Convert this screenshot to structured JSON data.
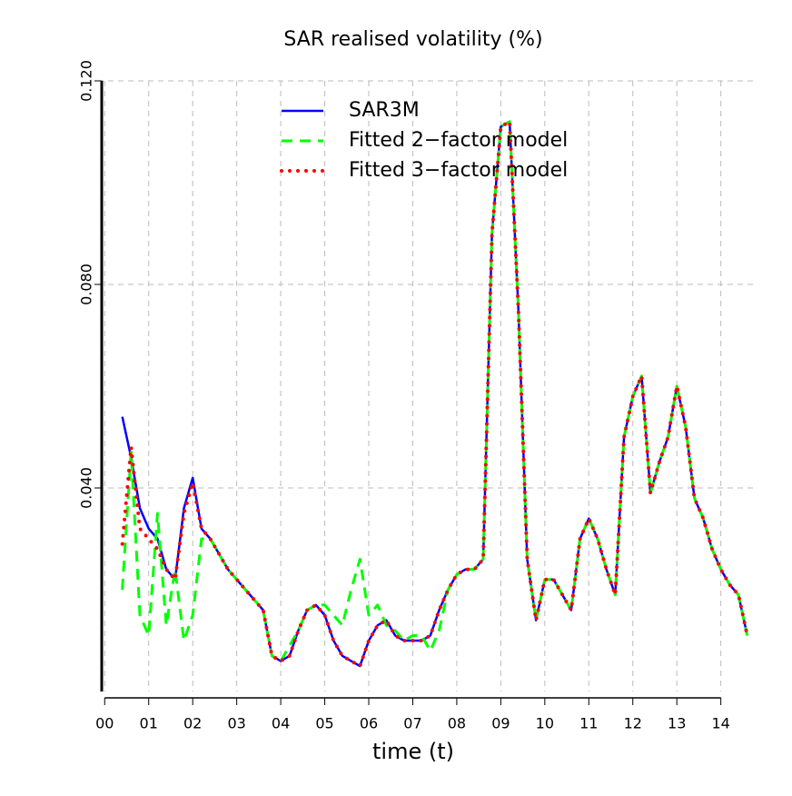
{
  "chart_data": {
    "type": "line",
    "title": "SAR realised volatility (%)",
    "x_label": "time (t)",
    "x": [
      0.4,
      0.6,
      0.8,
      1.0,
      1.2,
      1.4,
      1.6,
      1.8,
      2.0,
      2.2,
      2.4,
      2.6,
      2.8,
      3.0,
      3.2,
      3.4,
      3.6,
      3.8,
      4.0,
      4.2,
      4.4,
      4.6,
      4.8,
      5.0,
      5.2,
      5.4,
      5.6,
      5.8,
      6.0,
      6.2,
      6.4,
      6.6,
      6.8,
      7.0,
      7.2,
      7.4,
      7.6,
      7.8,
      8.0,
      8.2,
      8.4,
      8.6,
      8.8,
      9.0,
      9.2,
      9.4,
      9.6,
      9.8,
      10.0,
      10.2,
      10.4,
      10.6,
      10.8,
      11.0,
      11.2,
      11.4,
      11.6,
      11.8,
      12.0,
      12.2,
      12.4,
      12.6,
      12.8,
      13.0,
      13.2,
      13.4,
      13.6,
      13.8,
      14.0,
      14.2,
      14.4,
      14.6
    ],
    "series": [
      {
        "name": "SAR3M",
        "color": "#0000ff",
        "style": "solid",
        "values": [
          0.054,
          0.046,
          0.036,
          0.032,
          0.03,
          0.024,
          0.022,
          0.036,
          0.042,
          0.032,
          0.03,
          0.027,
          0.024,
          0.022,
          0.02,
          0.018,
          0.016,
          0.007,
          0.006,
          0.007,
          0.012,
          0.016,
          0.017,
          0.015,
          0.01,
          0.007,
          0.006,
          0.005,
          0.01,
          0.013,
          0.014,
          0.011,
          0.01,
          0.01,
          0.01,
          0.011,
          0.016,
          0.02,
          0.023,
          0.024,
          0.024,
          0.026,
          0.09,
          0.111,
          0.112,
          0.075,
          0.026,
          0.014,
          0.022,
          0.022,
          0.019,
          0.016,
          0.03,
          0.034,
          0.03,
          0.024,
          0.019,
          0.05,
          0.058,
          0.062,
          0.039,
          0.045,
          0.05,
          0.06,
          0.052,
          0.038,
          0.034,
          0.028,
          0.024,
          0.021,
          0.019,
          0.011
        ]
      },
      {
        "name": "Fitted 2−factor model",
        "color": "#00ff00",
        "style": "dashed",
        "values": [
          0.02,
          0.047,
          0.015,
          0.011,
          0.035,
          0.013,
          0.024,
          0.01,
          0.015,
          0.03,
          0.03,
          0.027,
          0.024,
          0.022,
          0.02,
          0.018,
          0.016,
          0.007,
          0.006,
          0.009,
          0.012,
          0.016,
          0.017,
          0.017,
          0.015,
          0.013,
          0.02,
          0.026,
          0.015,
          0.017,
          0.013,
          0.012,
          0.01,
          0.011,
          0.011,
          0.008,
          0.012,
          0.02,
          0.023,
          0.024,
          0.024,
          0.026,
          0.09,
          0.111,
          0.112,
          0.075,
          0.026,
          0.014,
          0.022,
          0.022,
          0.019,
          0.016,
          0.03,
          0.034,
          0.03,
          0.024,
          0.019,
          0.05,
          0.058,
          0.062,
          0.039,
          0.045,
          0.05,
          0.06,
          0.052,
          0.038,
          0.034,
          0.028,
          0.024,
          0.021,
          0.019,
          0.011
        ]
      },
      {
        "name": "Fitted 3−factor model",
        "color": "#ff0000",
        "style": "dotted",
        "values": [
          0.029,
          0.048,
          0.032,
          0.03,
          0.028,
          0.024,
          0.022,
          0.035,
          0.041,
          0.032,
          0.03,
          0.027,
          0.024,
          0.022,
          0.02,
          0.018,
          0.016,
          0.007,
          0.006,
          0.007,
          0.012,
          0.016,
          0.017,
          0.015,
          0.01,
          0.007,
          0.006,
          0.005,
          0.01,
          0.013,
          0.014,
          0.011,
          0.01,
          0.01,
          0.01,
          0.011,
          0.016,
          0.02,
          0.023,
          0.024,
          0.024,
          0.026,
          0.09,
          0.111,
          0.112,
          0.075,
          0.026,
          0.014,
          0.022,
          0.022,
          0.019,
          0.016,
          0.03,
          0.034,
          0.03,
          0.024,
          0.019,
          0.05,
          0.058,
          0.062,
          0.039,
          0.045,
          0.05,
          0.06,
          0.052,
          0.038,
          0.034,
          0.028,
          0.024,
          0.021,
          0.019,
          0.011
        ]
      }
    ],
    "xlim": [
      -0.15,
      14.75
    ],
    "ylim": [
      0,
      0.12
    ],
    "xticks": [
      {
        "value": 0,
        "label": "00"
      },
      {
        "value": 1,
        "label": "01"
      },
      {
        "value": 2,
        "label": "02"
      },
      {
        "value": 3,
        "label": "03"
      },
      {
        "value": 4,
        "label": "04"
      },
      {
        "value": 5,
        "label": "05"
      },
      {
        "value": 6,
        "label": "06"
      },
      {
        "value": 7,
        "label": "07"
      },
      {
        "value": 8,
        "label": "08"
      },
      {
        "value": 9,
        "label": "09"
      },
      {
        "value": 10,
        "label": "10"
      },
      {
        "value": 11,
        "label": "11"
      },
      {
        "value": 12,
        "label": "12"
      },
      {
        "value": 13,
        "label": "13"
      },
      {
        "value": 14,
        "label": "14"
      }
    ],
    "yticks": [
      {
        "value": 0.04,
        "label": "0.040"
      },
      {
        "value": 0.08,
        "label": "0.080"
      },
      {
        "value": 0.12,
        "label": "0.120"
      }
    ],
    "grid": true,
    "legend": "top"
  }
}
